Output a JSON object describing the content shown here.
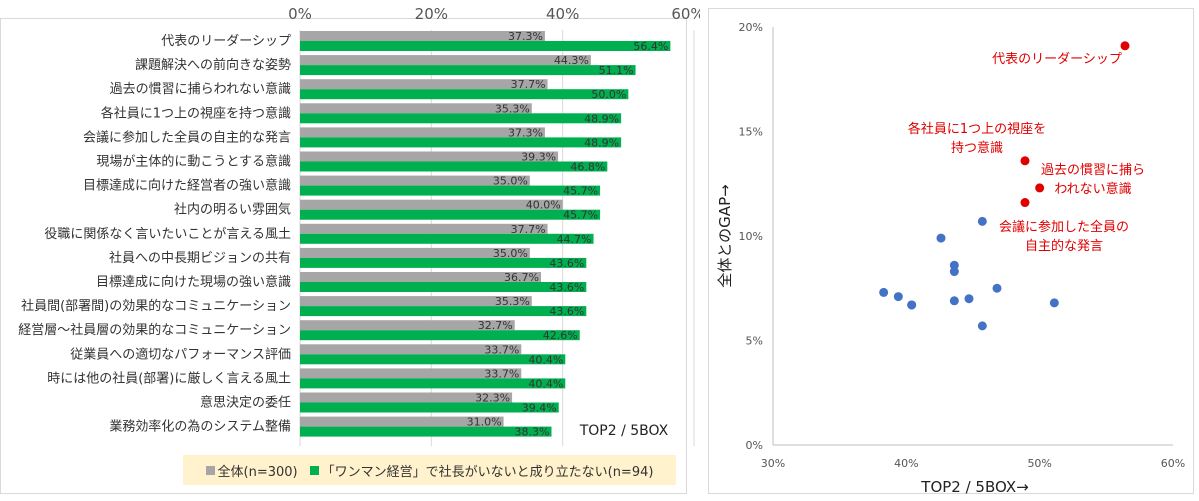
{
  "chart_data": [
    {
      "type": "bar",
      "orientation": "horizontal",
      "categories": [
        "代表のリーダーシップ",
        "課題解決への前向きな姿勢",
        "過去の慣習に捕らわれない意識",
        "各社員に1つ上の視座を持つ意識",
        "会議に参加した全員の自主的な発言",
        "現場が主体的に動こうとする意識",
        "目標達成に向けた経営者の強い意識",
        "社内の明るい雰囲気",
        "役職に関係なく言いたいことが言える風土",
        "社員への中長期ビジョンの共有",
        "目標達成に向けた現場の強い意識",
        "社員間(部署間)の効果的なコミュニケーション",
        "経営層～社員層の効果的なコミュニケーション",
        "従業員への適切なパフォーマンス評価",
        "時には他の社員(部署)に厳しく言える風土",
        "意思決定の委任",
        "業務効率化の為のシステム整備"
      ],
      "series": [
        {
          "name": "全体(n=300)",
          "color": "#a6a6a6",
          "values": [
            37.3,
            44.3,
            37.7,
            35.3,
            37.3,
            39.3,
            35.0,
            40.0,
            37.7,
            35.0,
            36.7,
            35.3,
            32.7,
            33.7,
            33.7,
            32.3,
            31.0
          ],
          "labels": [
            "37.3%",
            "44.3%",
            "37.7%",
            "35.3%",
            "37.3%",
            "39.3%",
            "35.0%",
            "40.0%",
            "37.7%",
            "35.0%",
            "36.7%",
            "35.3%",
            "32.7%",
            "33.7%",
            "33.7%",
            "32.3%",
            "31.0%"
          ]
        },
        {
          "name": "「ワンマン経営」で社長がいないと成り立たない(n=94)",
          "color": "#00b050",
          "values": [
            56.4,
            51.1,
            50.0,
            48.9,
            48.9,
            46.8,
            45.7,
            45.7,
            44.7,
            43.6,
            43.6,
            43.6,
            42.6,
            40.4,
            40.4,
            39.4,
            38.3
          ],
          "labels": [
            "56.4%",
            "51.1%",
            "50.0%",
            "48.9%",
            "48.9%",
            "46.8%",
            "45.7%",
            "45.7%",
            "44.7%",
            "43.6%",
            "43.6%",
            "43.6%",
            "42.6%",
            "40.4%",
            "40.4%",
            "39.4%",
            "38.3%"
          ]
        }
      ],
      "x_ticks": [
        "0%",
        "20%",
        "40%",
        "60%"
      ],
      "xlim": [
        0,
        60
      ],
      "gridlines": "vertical",
      "annotation": "TOP2 / 5BOX",
      "legend_position": "bottom",
      "legend": {
        "items": [
          "全体(n=300)",
          "「ワンマン経営」で社長がいないと成り立たない(n=94)"
        ],
        "background": "#fff2cc"
      }
    },
    {
      "type": "scatter",
      "xlabel": "TOP2 / 5BOX→",
      "ylabel": "全体とのGAP→",
      "xlim": [
        30,
        60
      ],
      "ylim": [
        0,
        20
      ],
      "x_ticks": [
        "30%",
        "40%",
        "50%",
        "60%"
      ],
      "y_ticks": [
        "0%",
        "5%",
        "10%",
        "15%",
        "20%"
      ],
      "highlight_color": "#e00000",
      "normal_color": "#4472c4",
      "points": [
        {
          "x": 56.4,
          "y": 19.1,
          "highlight": true
        },
        {
          "x": 51.1,
          "y": 6.8,
          "highlight": false
        },
        {
          "x": 50.0,
          "y": 12.3,
          "highlight": true
        },
        {
          "x": 48.9,
          "y": 13.6,
          "highlight": true
        },
        {
          "x": 48.9,
          "y": 11.6,
          "highlight": true
        },
        {
          "x": 46.8,
          "y": 7.5,
          "highlight": false
        },
        {
          "x": 45.7,
          "y": 10.7,
          "highlight": false
        },
        {
          "x": 45.7,
          "y": 5.7,
          "highlight": false
        },
        {
          "x": 44.7,
          "y": 7.0,
          "highlight": false
        },
        {
          "x": 43.6,
          "y": 8.6,
          "highlight": false
        },
        {
          "x": 43.6,
          "y": 6.9,
          "highlight": false
        },
        {
          "x": 43.6,
          "y": 8.3,
          "highlight": false
        },
        {
          "x": 42.6,
          "y": 9.9,
          "highlight": false
        },
        {
          "x": 40.4,
          "y": 6.7,
          "highlight": false
        },
        {
          "x": 40.4,
          "y": 6.7,
          "highlight": false
        },
        {
          "x": 39.4,
          "y": 7.1,
          "highlight": false
        },
        {
          "x": 38.3,
          "y": 7.3,
          "highlight": false
        }
      ],
      "annotations": [
        {
          "lines": [
            "代表のリーダーシップ"
          ]
        },
        {
          "lines": [
            "各社員に1つ上の視座を",
            "持つ意識"
          ]
        },
        {
          "lines": [
            "過去の慣習に捕ら",
            "われない意識"
          ]
        },
        {
          "lines": [
            "会議に参加した全員の",
            "自主的な発言"
          ]
        }
      ]
    }
  ]
}
